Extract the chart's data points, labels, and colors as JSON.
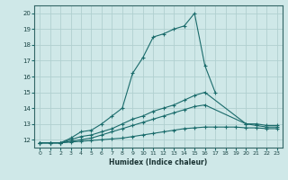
{
  "xlabel": "Humidex (Indice chaleur)",
  "bg_color": "#cfe8e8",
  "grid_color": "#b0d0d0",
  "line_color": "#1a6b6b",
  "xlim": [
    -0.5,
    23.5
  ],
  "ylim": [
    11.5,
    20.5
  ],
  "yticks": [
    12,
    13,
    14,
    15,
    16,
    17,
    18,
    19,
    20
  ],
  "xticks": [
    0,
    1,
    2,
    3,
    4,
    5,
    6,
    7,
    8,
    9,
    10,
    11,
    12,
    13,
    14,
    15,
    16,
    17,
    18,
    19,
    20,
    21,
    22,
    23
  ],
  "series": [
    {
      "x": [
        0,
        1,
        2,
        3,
        4,
        5,
        6,
        7,
        8,
        9,
        10,
        11,
        12,
        13,
        14,
        15,
        16,
        17
      ],
      "y": [
        11.8,
        11.8,
        11.8,
        12.1,
        12.5,
        12.6,
        13.0,
        13.5,
        14.0,
        16.2,
        17.2,
        18.5,
        18.7,
        19.0,
        19.2,
        20.0,
        16.7,
        15.0
      ]
    },
    {
      "x": [
        0,
        1,
        2,
        3,
        4,
        5,
        6,
        7,
        8,
        9,
        10,
        11,
        12,
        13,
        14,
        15,
        16,
        20,
        21,
        22,
        23
      ],
      "y": [
        11.8,
        11.8,
        11.8,
        12.0,
        12.2,
        12.3,
        12.5,
        12.7,
        13.0,
        13.3,
        13.5,
        13.8,
        14.0,
        14.2,
        14.5,
        14.8,
        15.0,
        13.0,
        13.0,
        12.9,
        12.9
      ]
    },
    {
      "x": [
        0,
        1,
        2,
        3,
        4,
        5,
        6,
        7,
        8,
        9,
        10,
        11,
        12,
        13,
        14,
        15,
        16,
        20,
        21,
        22,
        23
      ],
      "y": [
        11.8,
        11.8,
        11.8,
        11.9,
        12.0,
        12.1,
        12.3,
        12.5,
        12.7,
        12.9,
        13.1,
        13.3,
        13.5,
        13.7,
        13.9,
        14.1,
        14.2,
        13.0,
        12.9,
        12.8,
        12.8
      ]
    },
    {
      "x": [
        0,
        1,
        2,
        3,
        4,
        5,
        6,
        7,
        8,
        9,
        10,
        11,
        12,
        13,
        14,
        15,
        16,
        17,
        18,
        19,
        20,
        21,
        22,
        23
      ],
      "y": [
        11.8,
        11.8,
        11.8,
        11.85,
        11.9,
        11.95,
        12.0,
        12.05,
        12.1,
        12.2,
        12.3,
        12.4,
        12.5,
        12.6,
        12.7,
        12.75,
        12.8,
        12.8,
        12.8,
        12.8,
        12.75,
        12.75,
        12.7,
        12.7
      ]
    }
  ]
}
